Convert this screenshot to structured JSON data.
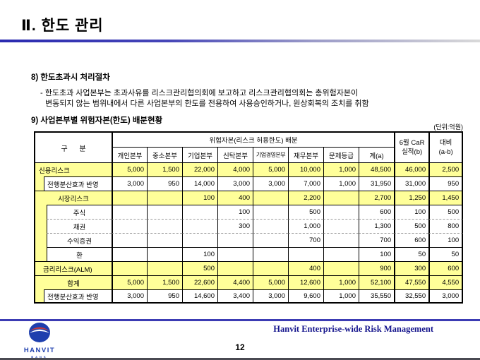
{
  "page": {
    "title": "Ⅱ. 한도 관리",
    "section8_heading": "8) 한도초과시 처리절차",
    "section8_bullet_line1": "- 한도초과 사업본부는 초과사유를 리스크관리협의회에 보고하고 리스크관리협의회는 총위험자본이",
    "section8_bullet_line2": "변동되지 않는 범위내에서 다른 사업본부의 한도를 전용하여 사용승인하거나, 원상회복의 조치를 취함",
    "section9_heading": "9) 사업본부별 위험자본(한도) 배분현황",
    "unit_label": "(단위:억원)"
  },
  "table": {
    "corner_header": "구      분",
    "span_header": "위험자본(리스크 허용한도) 배분",
    "sub_headers": [
      "개인본부",
      "중소본부",
      "기업본부",
      "신탁본부",
      "기업경영본부",
      "재무본부",
      "문제등급",
      "계(a)"
    ],
    "car_header_line1": "6월 CaR",
    "car_header_line2": "실적(b)",
    "diff_header_line1": "대비",
    "diff_header_line2": "(a-b)",
    "rows": [
      {
        "label": "신용리스크",
        "kind": "group",
        "sep": "solid",
        "values": [
          "5,000",
          "1,500",
          "22,000",
          "4,000",
          "5,000",
          "10,000",
          "1,000",
          "48,500",
          "46,000",
          "2,500"
        ]
      },
      {
        "label": "전행분산효과 반영",
        "kind": "detail",
        "sep": "solid",
        "values": [
          "3,000",
          "950",
          "14,000",
          "3,000",
          "3,000",
          "7,000",
          "1,000",
          "31,950",
          "31,000",
          "950"
        ]
      },
      {
        "label": "시장리스크",
        "kind": "group-center",
        "sep": "solid",
        "values": [
          "",
          "",
          "100",
          "400",
          "",
          "2,200",
          "",
          "2,700",
          "1,250",
          "1,450"
        ]
      },
      {
        "label": "주식",
        "kind": "sub",
        "sep": "solid",
        "values": [
          "",
          "",
          "",
          "100",
          "",
          "500",
          "",
          "600",
          "100",
          "500"
        ]
      },
      {
        "label": "채권",
        "kind": "sub",
        "sep": "dashed",
        "values": [
          "",
          "",
          "",
          "300",
          "",
          "1,000",
          "",
          "1,300",
          "500",
          "800"
        ]
      },
      {
        "label": "수익증권",
        "kind": "sub",
        "sep": "dashed",
        "values": [
          "",
          "",
          "",
          "",
          "",
          "700",
          "",
          "700",
          "600",
          "100"
        ]
      },
      {
        "label": "환",
        "kind": "sub",
        "sep": "solid",
        "values": [
          "",
          "",
          "100",
          "",
          "",
          "",
          "",
          "100",
          "50",
          "50"
        ]
      },
      {
        "label": "금리리스크(ALM)",
        "kind": "group-indent",
        "sep": "solid",
        "values": [
          "",
          "",
          "500",
          "",
          "",
          "400",
          "",
          "900",
          "300",
          "600"
        ]
      },
      {
        "label": "합계",
        "kind": "group-center",
        "sep": "solid",
        "values": [
          "5,000",
          "1,500",
          "22,600",
          "4,400",
          "5,000",
          "12,600",
          "1,000",
          "52,100",
          "47,550",
          "4,550"
        ]
      },
      {
        "label": "전행분산효과 반영",
        "kind": "detail",
        "sep": "solid",
        "values": [
          "3,000",
          "950",
          "14,600",
          "3,400",
          "3,000",
          "9,600",
          "1,000",
          "35,550",
          "32,550",
          "3,000"
        ]
      }
    ]
  },
  "footer": {
    "brand": "Hanvit Enterprise-wide Risk Management",
    "page_number": "12",
    "logo_title": "HANVIT",
    "logo_subtitle": "BANK"
  },
  "colors": {
    "row_highlight": "#FFFF99",
    "accent_blue": "#3C3CB4",
    "brand_navy": "#14148C",
    "logo_blue": "#1E3FAE",
    "logo_red": "#C93A3A"
  }
}
